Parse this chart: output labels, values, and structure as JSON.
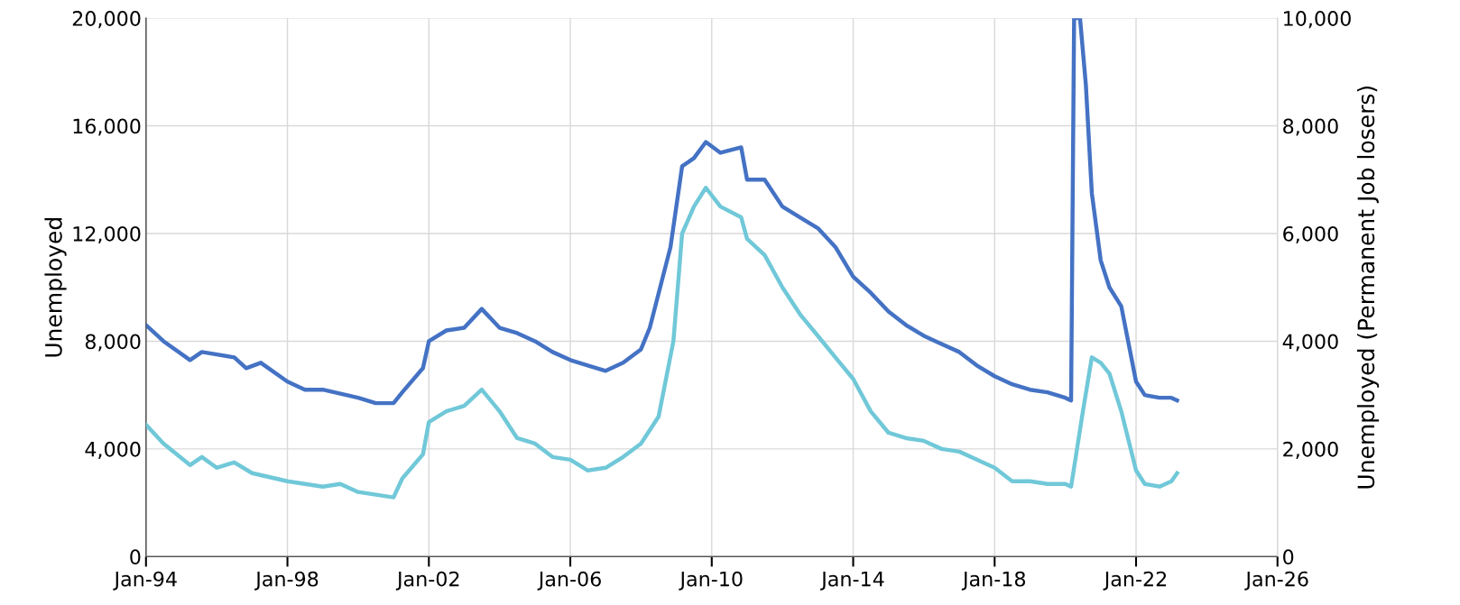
{
  "chart_data": {
    "type": "line",
    "ylabel": "Unemployed",
    "y2label": "Unemployed (Permanent Job losers)",
    "xlim": [
      "1994-01",
      "2026-01"
    ],
    "xticks": [
      {
        "value": "1994-01",
        "label": "Jan-94"
      },
      {
        "value": "1998-01",
        "label": "Jan-98"
      },
      {
        "value": "2002-01",
        "label": "Jan-02"
      },
      {
        "value": "2006-01",
        "label": "Jan-06"
      },
      {
        "value": "2010-01",
        "label": "Jan-10"
      },
      {
        "value": "2014-01",
        "label": "Jan-14"
      },
      {
        "value": "2018-01",
        "label": "Jan-18"
      },
      {
        "value": "2022-01",
        "label": "Jan-22"
      },
      {
        "value": "2026-01",
        "label": "Jan-26"
      }
    ],
    "ylim": [
      0,
      20000
    ],
    "yticks": [
      {
        "value": 0,
        "label": "0"
      },
      {
        "value": 4000,
        "label": "4,000"
      },
      {
        "value": 8000,
        "label": "8,000"
      },
      {
        "value": 12000,
        "label": "12,000"
      },
      {
        "value": 16000,
        "label": "16,000"
      },
      {
        "value": 20000,
        "label": "20,000"
      }
    ],
    "y2lim": [
      0,
      10000
    ],
    "y2ticks": [
      {
        "value": 0,
        "label": "0"
      },
      {
        "value": 2000,
        "label": "2,000"
      },
      {
        "value": 4000,
        "label": "4,000"
      },
      {
        "value": 6000,
        "label": "6,000"
      },
      {
        "value": 8000,
        "label": "8,000"
      },
      {
        "value": 10000,
        "label": "10,000"
      }
    ],
    "grid": true,
    "line_style": "solid",
    "series": [
      {
        "color": "#4472c4",
        "x": [
          "1994-01",
          "1994-07",
          "1995-04",
          "1995-08",
          "1996-07",
          "1996-11",
          "1997-04",
          "1998-01",
          "1998-07",
          "1999-01",
          "2000-01",
          "2000-07",
          "2001-01",
          "2001-04",
          "2001-11",
          "2002-01",
          "2002-07",
          "2003-01",
          "2003-07",
          "2004-01",
          "2004-07",
          "2005-01",
          "2005-07",
          "2006-01",
          "2006-07",
          "2007-01",
          "2007-07",
          "2008-01",
          "2008-04",
          "2008-11",
          "2009-03",
          "2009-07",
          "2009-11",
          "2010-04",
          "2010-11",
          "2011-01",
          "2011-07",
          "2012-01",
          "2012-07",
          "2013-01",
          "2013-07",
          "2014-01",
          "2014-07",
          "2015-01",
          "2015-07",
          "2016-01",
          "2016-07",
          "2017-01",
          "2017-07",
          "2018-01",
          "2018-07",
          "2019-01",
          "2019-07",
          "2020-01",
          "2020-03",
          "2020-04",
          "2020-06",
          "2020-08",
          "2020-10",
          "2021-01",
          "2021-04",
          "2021-08",
          "2022-01",
          "2022-04",
          "2022-09",
          "2023-01",
          "2023-03"
        ],
        "values": [
          8600,
          8000,
          7300,
          7600,
          7400,
          7000,
          7200,
          6500,
          6200,
          6200,
          5900,
          5700,
          5700,
          6100,
          7000,
          8000,
          8400,
          8500,
          9200,
          8500,
          8300,
          8000,
          7600,
          7300,
          7100,
          6900,
          7200,
          7700,
          8500,
          11500,
          14500,
          14800,
          15400,
          15000,
          15200,
          14000,
          14000,
          13000,
          12600,
          12200,
          11500,
          10400,
          9800,
          9100,
          8600,
          8200,
          7900,
          7600,
          7100,
          6700,
          6400,
          6200,
          6100,
          5900,
          5800,
          20000,
          20000,
          17500,
          13500,
          11000,
          10000,
          9300,
          6500,
          6000,
          5900,
          5900,
          5800
        ]
      },
      {
        "color": "#70c8d8",
        "axis": "y2",
        "x": [
          "1994-01",
          "1994-07",
          "1995-04",
          "1995-08",
          "1996-01",
          "1996-07",
          "1997-01",
          "1998-01",
          "1999-01",
          "1999-07",
          "2000-01",
          "2000-07",
          "2001-01",
          "2001-04",
          "2001-11",
          "2002-01",
          "2002-07",
          "2003-01",
          "2003-07",
          "2004-01",
          "2004-07",
          "2005-01",
          "2005-07",
          "2006-01",
          "2006-07",
          "2007-01",
          "2007-07",
          "2008-01",
          "2008-07",
          "2008-12",
          "2009-03",
          "2009-07",
          "2009-11",
          "2010-04",
          "2010-11",
          "2011-01",
          "2011-07",
          "2012-01",
          "2012-07",
          "2013-01",
          "2013-07",
          "2014-01",
          "2014-07",
          "2015-01",
          "2015-07",
          "2016-01",
          "2016-07",
          "2017-01",
          "2017-07",
          "2018-01",
          "2018-07",
          "2019-01",
          "2019-07",
          "2020-01",
          "2020-03",
          "2020-07",
          "2020-10",
          "2021-01",
          "2021-04",
          "2021-08",
          "2022-01",
          "2022-04",
          "2022-09",
          "2023-01",
          "2023-03"
        ],
        "values": [
          2450,
          2100,
          1700,
          1850,
          1650,
          1750,
          1550,
          1400,
          1300,
          1350,
          1200,
          1150,
          1100,
          1450,
          1900,
          2500,
          2700,
          2800,
          3100,
          2700,
          2200,
          2100,
          1850,
          1800,
          1600,
          1650,
          1850,
          2100,
          2600,
          4000,
          6000,
          6500,
          6850,
          6500,
          6300,
          5900,
          5600,
          5000,
          4500,
          4100,
          3700,
          3300,
          2700,
          2300,
          2200,
          2150,
          2000,
          1950,
          1800,
          1650,
          1400,
          1400,
          1350,
          1350,
          1300,
          2700,
          3700,
          3600,
          3400,
          2700,
          1600,
          1350,
          1300,
          1400,
          1550
        ]
      }
    ]
  }
}
